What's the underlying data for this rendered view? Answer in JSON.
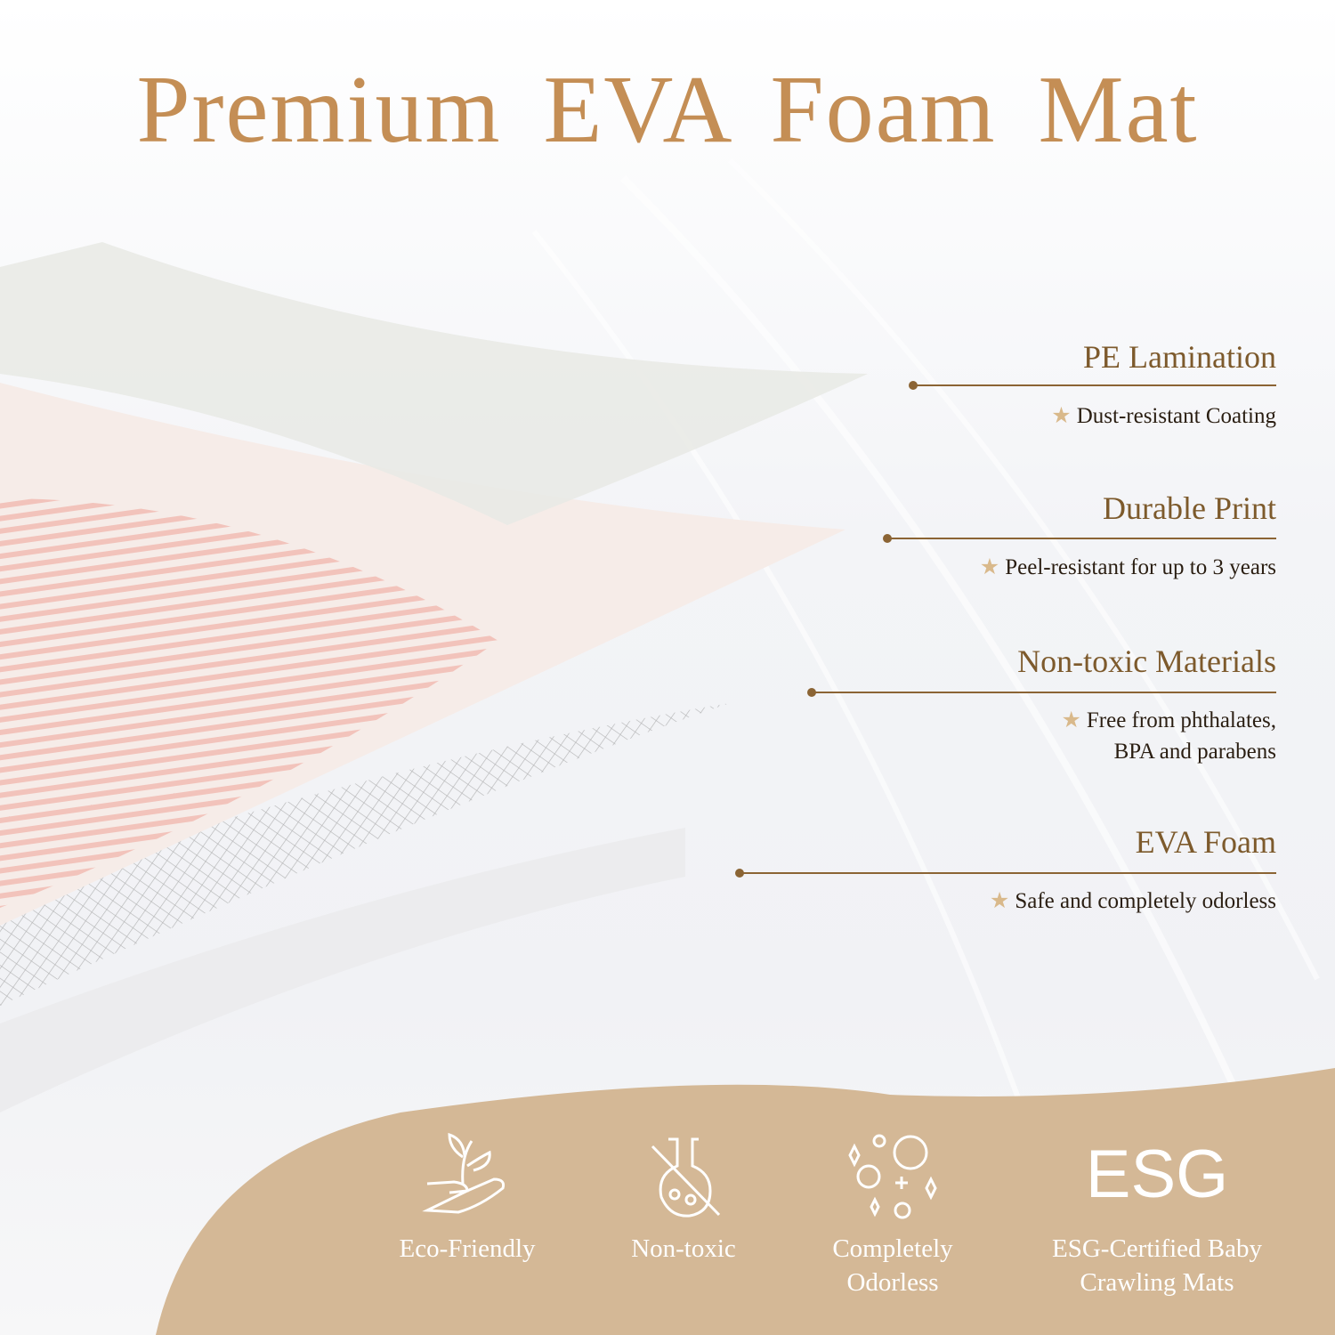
{
  "title": "Premium  EVA  Foam Mat",
  "colors": {
    "title": "#C48E55",
    "accent_line": "#8B6434",
    "star": "#D9B98B",
    "footer_band": "#D4B896"
  },
  "features": [
    {
      "heading": "PE Lamination",
      "lines": [
        "Dust-resistant Coating"
      ]
    },
    {
      "heading": "Durable Print",
      "lines": [
        "Peel-resistant for up to 3 years"
      ]
    },
    {
      "heading": "Non-toxic Materials",
      "lines": [
        "Free from phthalates,",
        "BPA and parabens"
      ]
    },
    {
      "heading": "EVA Foam",
      "lines": [
        "Safe and completely odorless"
      ]
    }
  ],
  "badges": [
    {
      "icon": "plant-in-hand-icon",
      "label_1": "Eco-Friendly",
      "label_2": ""
    },
    {
      "icon": "crossed-flask-icon",
      "label_1": "Non-toxic",
      "label_2": ""
    },
    {
      "icon": "bubbles-sparkles-icon",
      "label_1": "Completely",
      "label_2": "Odorless"
    },
    {
      "icon": "esg-logo",
      "logo_text": "ESG",
      "label_1": "ESG-Certified Baby",
      "label_2": "Crawling Mats"
    }
  ]
}
